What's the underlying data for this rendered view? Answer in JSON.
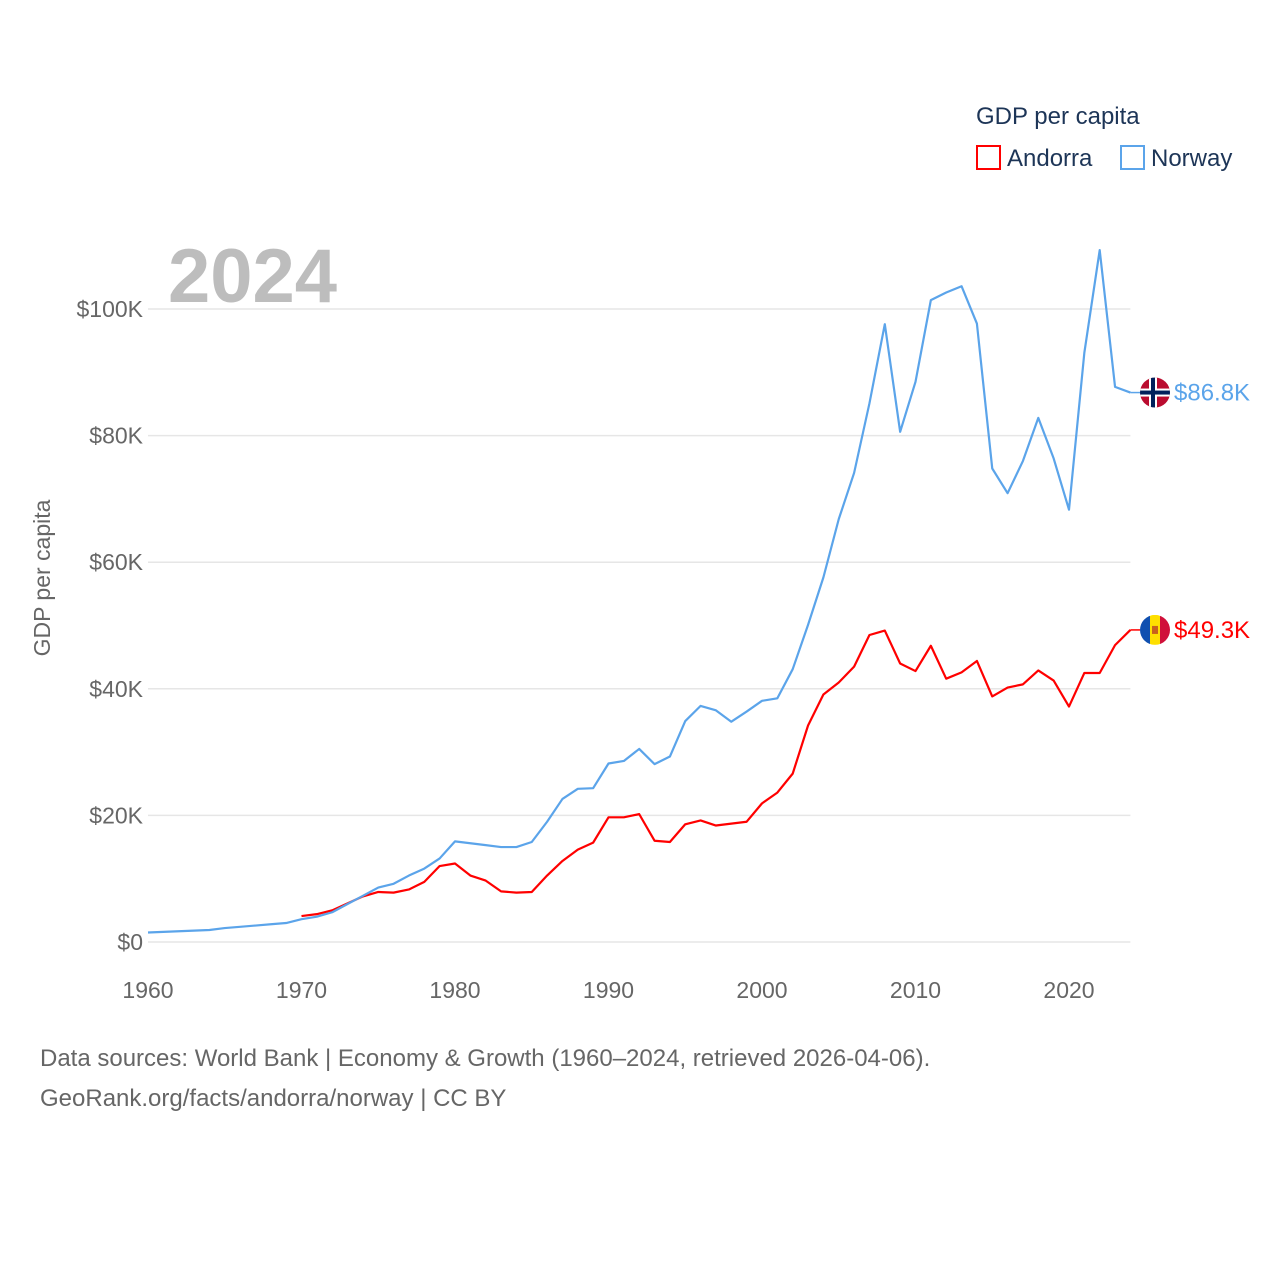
{
  "chart_data": {
    "type": "line",
    "year_watermark": "2024",
    "ylabel": "GDP per capita",
    "xlabel": "",
    "legend": {
      "title": "GDP per capita",
      "placement": "top-right",
      "entries": [
        "Andorra",
        "Norway"
      ]
    },
    "xlim": [
      1960,
      2024
    ],
    "ylim": [
      0,
      110000
    ],
    "x_ticks": [
      1960,
      1970,
      1980,
      1990,
      2000,
      2010,
      2020
    ],
    "x_tick_labels": [
      "1960",
      "1970",
      "1980",
      "1990",
      "2000",
      "2010",
      "2020"
    ],
    "y_ticks": [
      0,
      20000,
      40000,
      60000,
      80000,
      100000
    ],
    "y_tick_labels": [
      "$0",
      "$20K",
      "$40K",
      "$60K",
      "$80K",
      "$100K"
    ],
    "grid": true,
    "series": [
      {
        "name": "Andorra",
        "color": "#ff0000",
        "end_label": "$49.3K",
        "flag": "andorra-flag",
        "start_year": 1970,
        "values": [
          4.1,
          4.4,
          5.0,
          6.1,
          7.2,
          7.9,
          7.8,
          8.3,
          9.5,
          12.0,
          12.4,
          10.5,
          9.7,
          8.0,
          7.8,
          7.9,
          10.5,
          12.8,
          14.6,
          15.7,
          19.7,
          19.7,
          20.2,
          16.0,
          15.8,
          18.6,
          19.2,
          18.4,
          18.7,
          19.0,
          21.9,
          23.6,
          26.6,
          34.2,
          39.1,
          41.0,
          43.5,
          48.5,
          49.2,
          44.0,
          42.8,
          46.8,
          41.6,
          42.6,
          44.4,
          38.8,
          40.2,
          40.7,
          42.9,
          41.3,
          37.2,
          42.5,
          42.5,
          46.9,
          49.3
        ],
        "unit": "thousand USD"
      },
      {
        "name": "Norway",
        "color": "#5ba4ea",
        "end_label": "$86.8K",
        "flag": "norway-flag",
        "start_year": 1960,
        "values": [
          1.5,
          1.6,
          1.7,
          1.8,
          1.9,
          2.2,
          2.4,
          2.6,
          2.8,
          3.0,
          3.6,
          4.0,
          4.7,
          6.0,
          7.3,
          8.6,
          9.2,
          10.5,
          11.6,
          13.2,
          15.9,
          15.6,
          15.3,
          15.0,
          15.0,
          15.8,
          19.0,
          22.6,
          24.2,
          24.3,
          28.2,
          28.6,
          30.5,
          28.1,
          29.3,
          34.9,
          37.3,
          36.6,
          34.8,
          36.4,
          38.1,
          38.5,
          43.1,
          50.1,
          57.6,
          66.8,
          74.1,
          85.1,
          97.6,
          80.6,
          88.5,
          101.4,
          102.6,
          103.6,
          97.7,
          74.8,
          70.9,
          76.0,
          82.8,
          76.4,
          68.3,
          93.1,
          109.3,
          87.7,
          86.8
        ],
        "unit": "thousand USD"
      }
    ]
  },
  "footer": {
    "line1": "Data sources: World Bank | Economy & Growth (1960–2024, retrieved 2026-04-06).",
    "line2": "GeoRank.org/facts/andorra/norway | CC BY"
  }
}
